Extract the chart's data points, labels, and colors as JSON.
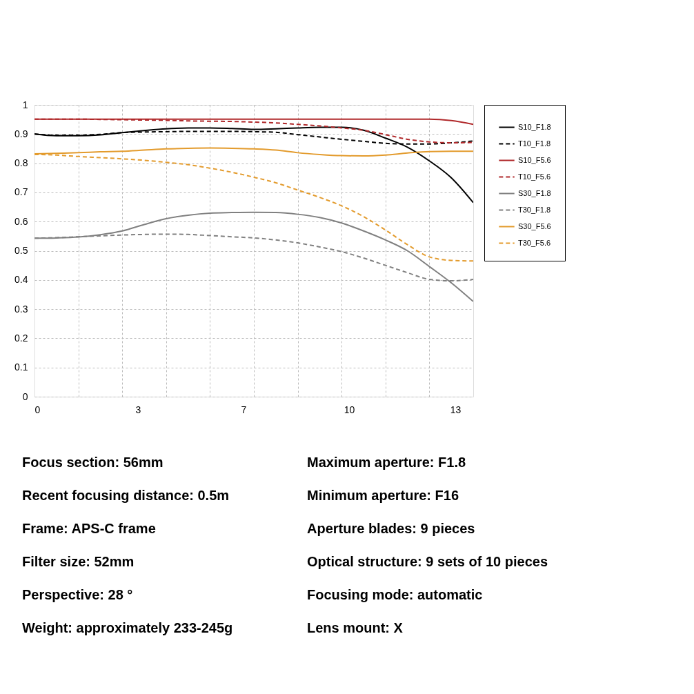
{
  "chart_data": {
    "type": "line",
    "x": [
      0,
      0.7,
      1.4,
      2.1,
      2.8,
      3.5,
      4.2,
      4.9,
      5.6,
      6.3,
      7.0,
      7.7,
      8.4,
      9.1,
      9.8,
      10.5,
      11.2,
      11.9,
      12.6,
      13.3,
      14.0
    ],
    "series": [
      {
        "name": "S10_F1.8",
        "color": "#000000",
        "line_style": "solid",
        "values": [
          0.9,
          0.894,
          0.894,
          0.897,
          0.905,
          0.912,
          0.918,
          0.921,
          0.921,
          0.919,
          0.916,
          0.918,
          0.921,
          0.923,
          0.923,
          0.913,
          0.886,
          0.855,
          0.808,
          0.75,
          0.665
        ]
      },
      {
        "name": "T10_F1.8",
        "color": "#000000",
        "line_style": "dashed",
        "values": [
          0.9,
          0.896,
          0.896,
          0.899,
          0.905,
          0.907,
          0.908,
          0.909,
          0.909,
          0.909,
          0.908,
          0.906,
          0.898,
          0.89,
          0.882,
          0.875,
          0.868,
          0.866,
          0.866,
          0.87,
          0.876
        ]
      },
      {
        "name": "S10_F5.6",
        "color": "#b0282a",
        "line_style": "solid",
        "values": [
          0.951,
          0.951,
          0.951,
          0.951,
          0.951,
          0.951,
          0.951,
          0.951,
          0.951,
          0.951,
          0.951,
          0.951,
          0.951,
          0.951,
          0.951,
          0.951,
          0.951,
          0.951,
          0.951,
          0.946,
          0.933
        ]
      },
      {
        "name": "T10_F5.6",
        "color": "#b0282a",
        "line_style": "dashed",
        "values": [
          0.951,
          0.951,
          0.951,
          0.95,
          0.949,
          0.948,
          0.947,
          0.945,
          0.944,
          0.943,
          0.941,
          0.938,
          0.933,
          0.928,
          0.921,
          0.913,
          0.898,
          0.882,
          0.873,
          0.87,
          0.871
        ]
      },
      {
        "name": "S30_F1.8",
        "color": "#808080",
        "line_style": "solid",
        "values": [
          0.543,
          0.544,
          0.547,
          0.555,
          0.568,
          0.59,
          0.61,
          0.622,
          0.629,
          0.631,
          0.632,
          0.631,
          0.625,
          0.614,
          0.595,
          0.568,
          0.537,
          0.5,
          0.446,
          0.39,
          0.326
        ]
      },
      {
        "name": "T30_F1.8",
        "color": "#808080",
        "line_style": "dashed",
        "values": [
          0.543,
          0.545,
          0.548,
          0.551,
          0.554,
          0.556,
          0.557,
          0.556,
          0.552,
          0.548,
          0.544,
          0.537,
          0.527,
          0.513,
          0.497,
          0.475,
          0.45,
          0.425,
          0.402,
          0.397,
          0.402
        ]
      },
      {
        "name": "S30_F5.6",
        "color": "#e39b2d",
        "line_style": "solid",
        "values": [
          0.832,
          0.834,
          0.836,
          0.839,
          0.841,
          0.845,
          0.849,
          0.851,
          0.852,
          0.851,
          0.849,
          0.845,
          0.836,
          0.83,
          0.826,
          0.825,
          0.828,
          0.835,
          0.84,
          0.841,
          0.841
        ]
      },
      {
        "name": "T30_F5.6",
        "color": "#e39b2d",
        "line_style": "dashed",
        "values": [
          0.83,
          0.828,
          0.823,
          0.819,
          0.815,
          0.81,
          0.803,
          0.795,
          0.783,
          0.769,
          0.752,
          0.733,
          0.708,
          0.683,
          0.654,
          0.617,
          0.571,
          0.521,
          0.479,
          0.467,
          0.465
        ]
      }
    ],
    "xlim": [
      0,
      14
    ],
    "xticks": [
      {
        "value": 0,
        "label": "0"
      },
      {
        "value": 1.4,
        "label": null
      },
      {
        "value": 2.8,
        "label": null
      },
      {
        "value": 3.3,
        "label": "3"
      },
      {
        "value": 4.2,
        "label": null
      },
      {
        "value": 5.6,
        "label": null
      },
      {
        "value": 6.67,
        "label": "7"
      },
      {
        "value": 7.0,
        "label": null
      },
      {
        "value": 8.4,
        "label": null
      },
      {
        "value": 9.8,
        "label": null
      },
      {
        "value": 10.04,
        "label": "10"
      },
      {
        "value": 11.2,
        "label": null
      },
      {
        "value": 12.6,
        "label": null
      },
      {
        "value": 13.43,
        "label": "13"
      }
    ],
    "ylim": [
      0,
      1
    ],
    "yticks": [
      0,
      0.1,
      0.2,
      0.3,
      0.4,
      0.5,
      0.6,
      0.7,
      0.8,
      0.9,
      1
    ],
    "grid": true,
    "legend": "right",
    "annotations": [
      "Focus section: 56mm",
      "Maximum aperture: F1.8",
      "Recent focusing distance: 0.5m",
      "Minimum aperture: F16",
      "Frame: APS-C frame",
      "Aperture blades: 9 pieces",
      "Filter size: 52mm",
      "Optical structure: 9 sets of 10 pieces",
      "Perspective: 28 °",
      "Focusing mode: automatic",
      "Weight: approximately 233-245g",
      "Lens mount: X"
    ]
  }
}
